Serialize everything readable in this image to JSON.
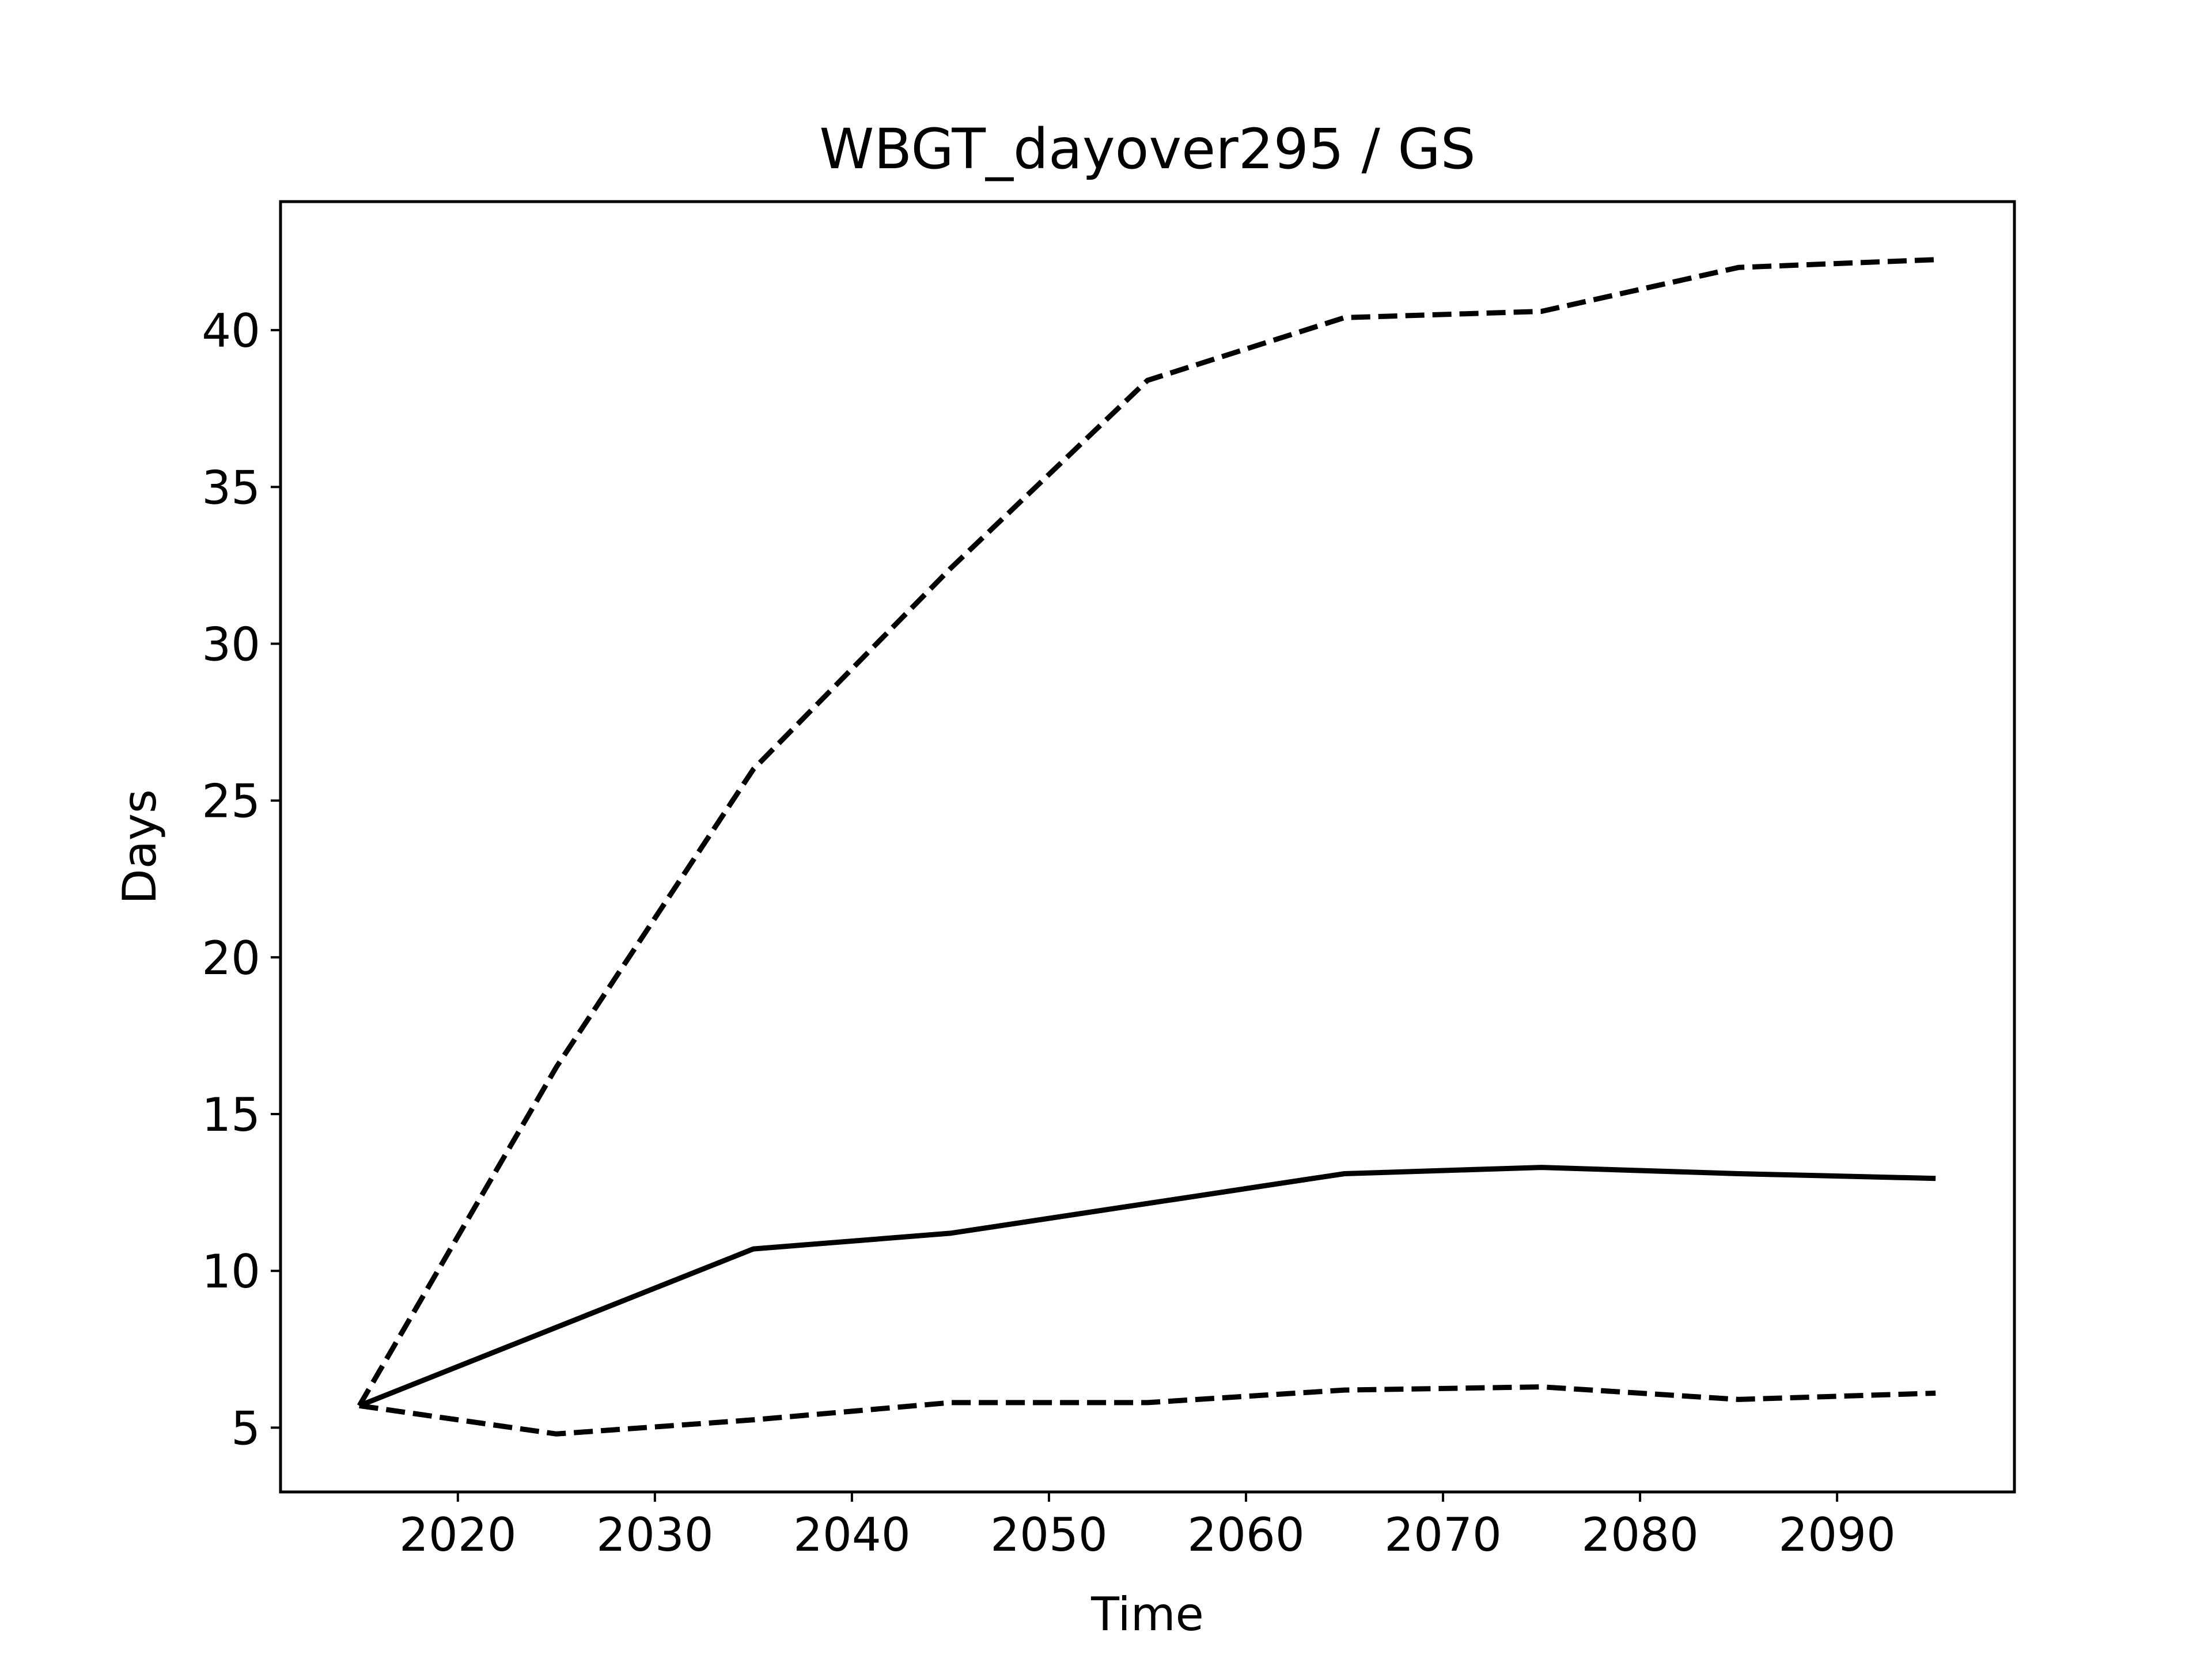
{
  "chart_data": {
    "type": "line",
    "title": "WBGT_dayover295 / GS",
    "xlabel": "Time",
    "ylabel": "Days",
    "xlim": [
      2011,
      2099
    ],
    "ylim": [
      2.95,
      44.1
    ],
    "xticks": [
      2020,
      2030,
      2040,
      2050,
      2060,
      2070,
      2080,
      2090
    ],
    "yticks": [
      5,
      10,
      15,
      20,
      25,
      30,
      35,
      40
    ],
    "grid": false,
    "legend": "none",
    "x": [
      2015,
      2025,
      2035,
      2045,
      2055,
      2065,
      2075,
      2085,
      2095
    ],
    "series": [
      {
        "style": "solid",
        "color": "#000000",
        "values": [
          5.7,
          8.2,
          10.7,
          11.2,
          12.15,
          13.1,
          13.3,
          13.1,
          12.95
        ]
      },
      {
        "style": "dashed",
        "color": "#000000",
        "values": [
          5.7,
          16.5,
          26.0,
          32.4,
          38.4,
          40.4,
          40.6,
          42.0,
          42.25
        ]
      },
      {
        "style": "dashed",
        "color": "#000000",
        "values": [
          5.7,
          4.8,
          5.25,
          5.8,
          5.8,
          6.2,
          6.3,
          5.9,
          6.1
        ]
      }
    ]
  }
}
